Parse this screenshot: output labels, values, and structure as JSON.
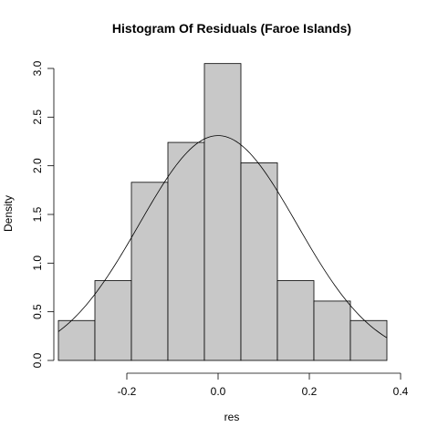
{
  "chart_data": {
    "type": "bar",
    "title": "Histogram Of Residuals (Faroe Islands)",
    "xlabel": "res",
    "ylabel": "Density",
    "xlim": [
      -0.36,
      0.42
    ],
    "ylim": [
      0,
      3.15
    ],
    "x_ticks": [
      -0.2,
      0.0,
      0.2,
      0.4
    ],
    "x_tick_labels": [
      "-0.2",
      "0.0",
      "0.2",
      "0.4"
    ],
    "y_ticks": [
      0,
      0.5,
      1,
      1.5,
      2,
      2.5,
      3
    ],
    "y_tick_labels": [
      "0.0",
      "0.5",
      "1.0",
      "1.5",
      "2.0",
      "2.5",
      "3.0"
    ],
    "bins": [
      {
        "left": -0.35,
        "right": -0.27,
        "density": 0.41
      },
      {
        "left": -0.27,
        "right": -0.19,
        "density": 0.82
      },
      {
        "left": -0.19,
        "right": -0.11,
        "density": 1.83
      },
      {
        "left": -0.11,
        "right": -0.03,
        "density": 2.24
      },
      {
        "left": -0.03,
        "right": 0.05,
        "density": 3.05
      },
      {
        "left": 0.05,
        "right": 0.13,
        "density": 2.03
      },
      {
        "left": 0.13,
        "right": 0.21,
        "density": 0.82
      },
      {
        "left": 0.21,
        "right": 0.29,
        "density": 0.61
      },
      {
        "left": 0.29,
        "right": 0.37,
        "density": 0.41
      }
    ],
    "density_curve": {
      "type": "normal",
      "mean": 0.0,
      "sd": 0.1727,
      "x_range": [
        -0.35,
        0.37
      ]
    },
    "grid": false,
    "legend": "none"
  }
}
